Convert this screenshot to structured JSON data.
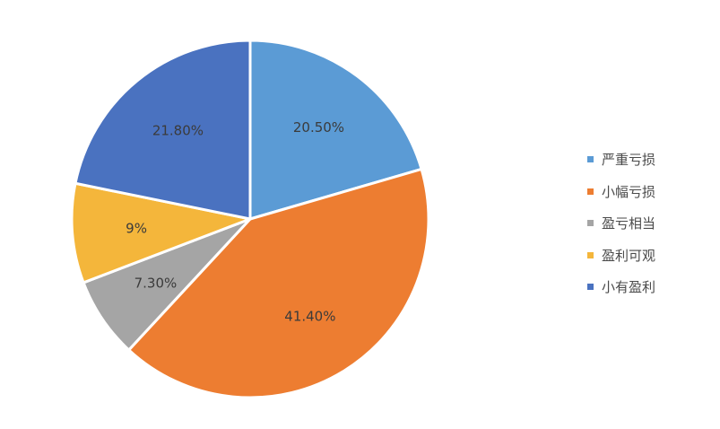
{
  "chart_data": {
    "type": "pie",
    "title": "",
    "legend_position": "right",
    "slices": [
      {
        "name": "严重亏损",
        "value": 20.5,
        "label": "20.50%",
        "color": "#5b9bd5"
      },
      {
        "name": "小幅亏损",
        "value": 41.4,
        "label": "41.40%",
        "color": "#ed7d31"
      },
      {
        "name": "盈亏相当",
        "value": 7.3,
        "label": "7.30%",
        "color": "#a5a5a5"
      },
      {
        "name": "盈利可观",
        "value": 9,
        "label": "9%",
        "color": "#f4b63b"
      },
      {
        "name": "小有盈利",
        "value": 21.8,
        "label": "21.80%",
        "color": "#4a72c0"
      }
    ]
  }
}
